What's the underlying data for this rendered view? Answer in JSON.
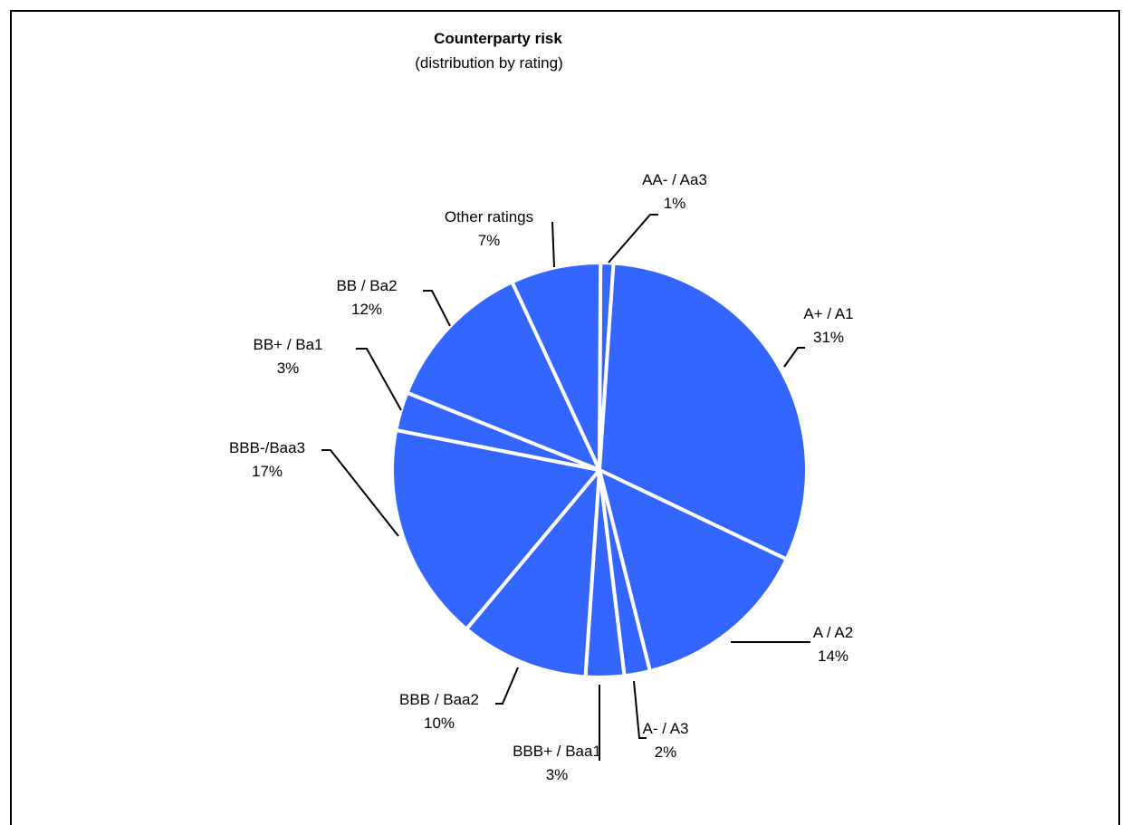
{
  "chart_data": {
    "type": "pie",
    "title": "Counterparty risk",
    "subtitle": "(distribution by rating)",
    "slice_color": "#3366FF",
    "separator_color": "#FFFFFF",
    "slices": [
      {
        "name": "AA- / Aa3",
        "value": 1,
        "pct_label": "1%"
      },
      {
        "name": "A+ / A1",
        "value": 31,
        "pct_label": "31%"
      },
      {
        "name": "A / A2",
        "value": 14,
        "pct_label": "14%"
      },
      {
        "name": "A- / A3",
        "value": 2,
        "pct_label": "2%"
      },
      {
        "name": "BBB+ / Baa1",
        "value": 3,
        "pct_label": "3%"
      },
      {
        "name": "BBB / Baa2",
        "value": 10,
        "pct_label": "10%"
      },
      {
        "name": "BBB-/Baa3",
        "value": 17,
        "pct_label": "17%"
      },
      {
        "name": "BB+ / Ba1",
        "value": 3,
        "pct_label": "3%"
      },
      {
        "name": "BB / Ba2",
        "value": 12,
        "pct_label": "12%"
      },
      {
        "name": "Other ratings",
        "value": 7,
        "pct_label": "7%"
      }
    ]
  }
}
